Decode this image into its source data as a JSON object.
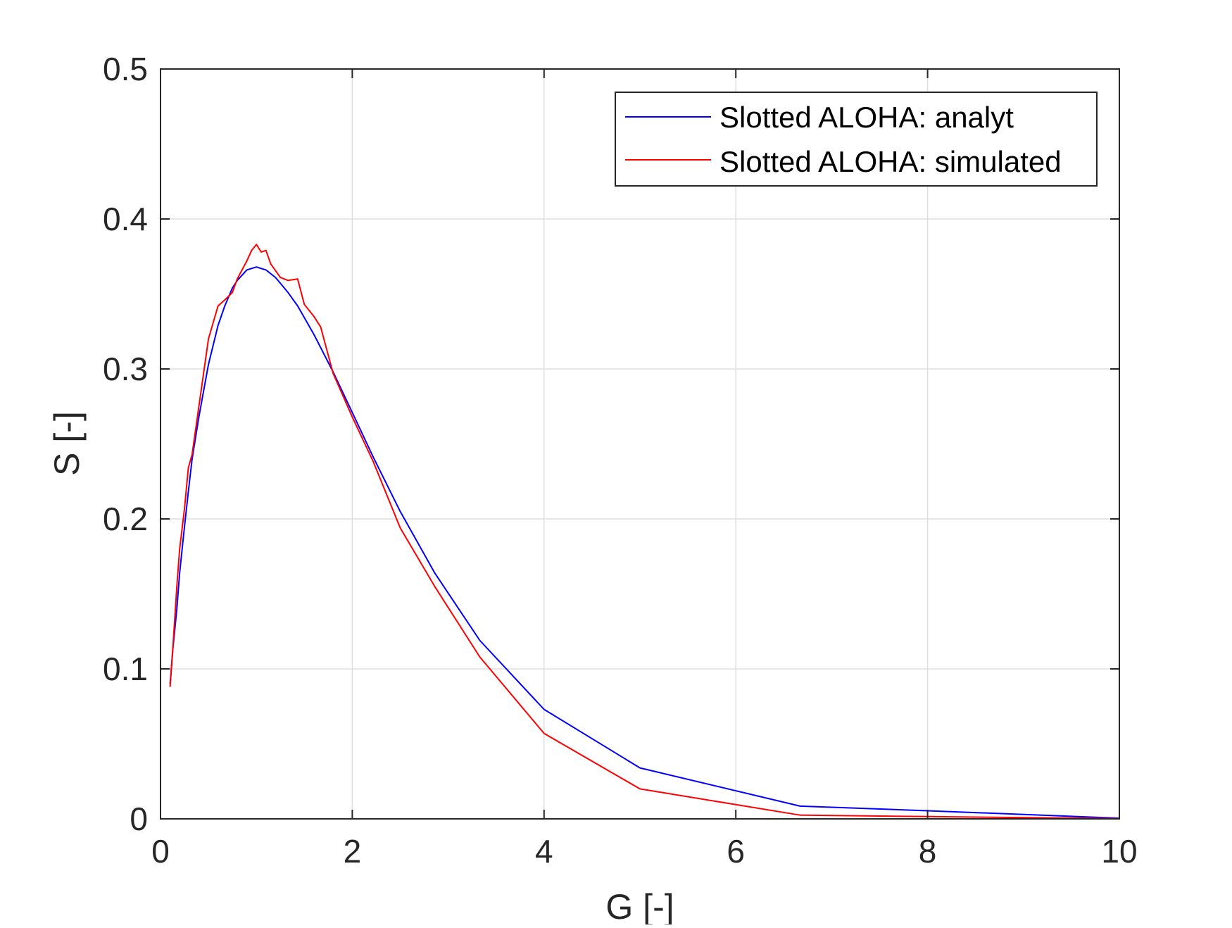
{
  "chart_data": {
    "type": "line",
    "title": "",
    "xlabel": "G [-]",
    "ylabel": "S [-]",
    "xlim": [
      0,
      10
    ],
    "ylim": [
      0,
      0.5
    ],
    "xticks": [
      0,
      2,
      4,
      6,
      8,
      10
    ],
    "yticks": [
      0,
      0.1,
      0.2,
      0.3,
      0.4,
      0.5
    ],
    "xtick_labels": [
      "0",
      "2",
      "4",
      "6",
      "8",
      "10"
    ],
    "ytick_labels": [
      "0",
      "0.1",
      "0.2",
      "0.3",
      "0.4",
      "0.5"
    ],
    "grid": true,
    "legend_position": "top-right",
    "series": [
      {
        "name": "Slotted ALOHA: analyt",
        "color": "#0000ff",
        "x": [
          0.1,
          0.13,
          0.17,
          0.2,
          0.25,
          0.29,
          0.33,
          0.4,
          0.5,
          0.6,
          0.67,
          0.75,
          0.8,
          0.9,
          1.0,
          1.1,
          1.2,
          1.33,
          1.43,
          1.6,
          1.8,
          2.0,
          2.22,
          2.5,
          2.86,
          3.33,
          4.0,
          5.0,
          6.67,
          8.0,
          10.0
        ],
        "y": [
          0.09,
          0.114,
          0.14,
          0.164,
          0.195,
          0.218,
          0.24,
          0.268,
          0.303,
          0.329,
          0.342,
          0.354,
          0.359,
          0.366,
          0.368,
          0.366,
          0.361,
          0.351,
          0.342,
          0.323,
          0.298,
          0.271,
          0.241,
          0.205,
          0.164,
          0.119,
          0.073,
          0.034,
          0.0085,
          0.0054,
          0.00045
        ]
      },
      {
        "name": "Slotted ALOHA: simulated",
        "color": "#ff0000",
        "x": [
          0.1,
          0.13,
          0.17,
          0.2,
          0.25,
          0.29,
          0.33,
          0.4,
          0.5,
          0.6,
          0.67,
          0.75,
          0.8,
          0.9,
          0.95,
          1.0,
          1.05,
          1.1,
          1.15,
          1.25,
          1.33,
          1.43,
          1.5,
          1.6,
          1.67,
          1.8,
          2.0,
          2.22,
          2.5,
          2.86,
          3.33,
          4.0,
          5.0,
          6.67,
          8.0,
          10.0
        ],
        "y": [
          0.088,
          0.115,
          0.155,
          0.18,
          0.207,
          0.234,
          0.243,
          0.275,
          0.32,
          0.342,
          0.346,
          0.351,
          0.36,
          0.372,
          0.379,
          0.383,
          0.378,
          0.379,
          0.37,
          0.361,
          0.359,
          0.36,
          0.343,
          0.335,
          0.328,
          0.297,
          0.268,
          0.238,
          0.194,
          0.155,
          0.108,
          0.057,
          0.02,
          0.0025,
          0.0015,
          0.0002
        ]
      }
    ]
  }
}
